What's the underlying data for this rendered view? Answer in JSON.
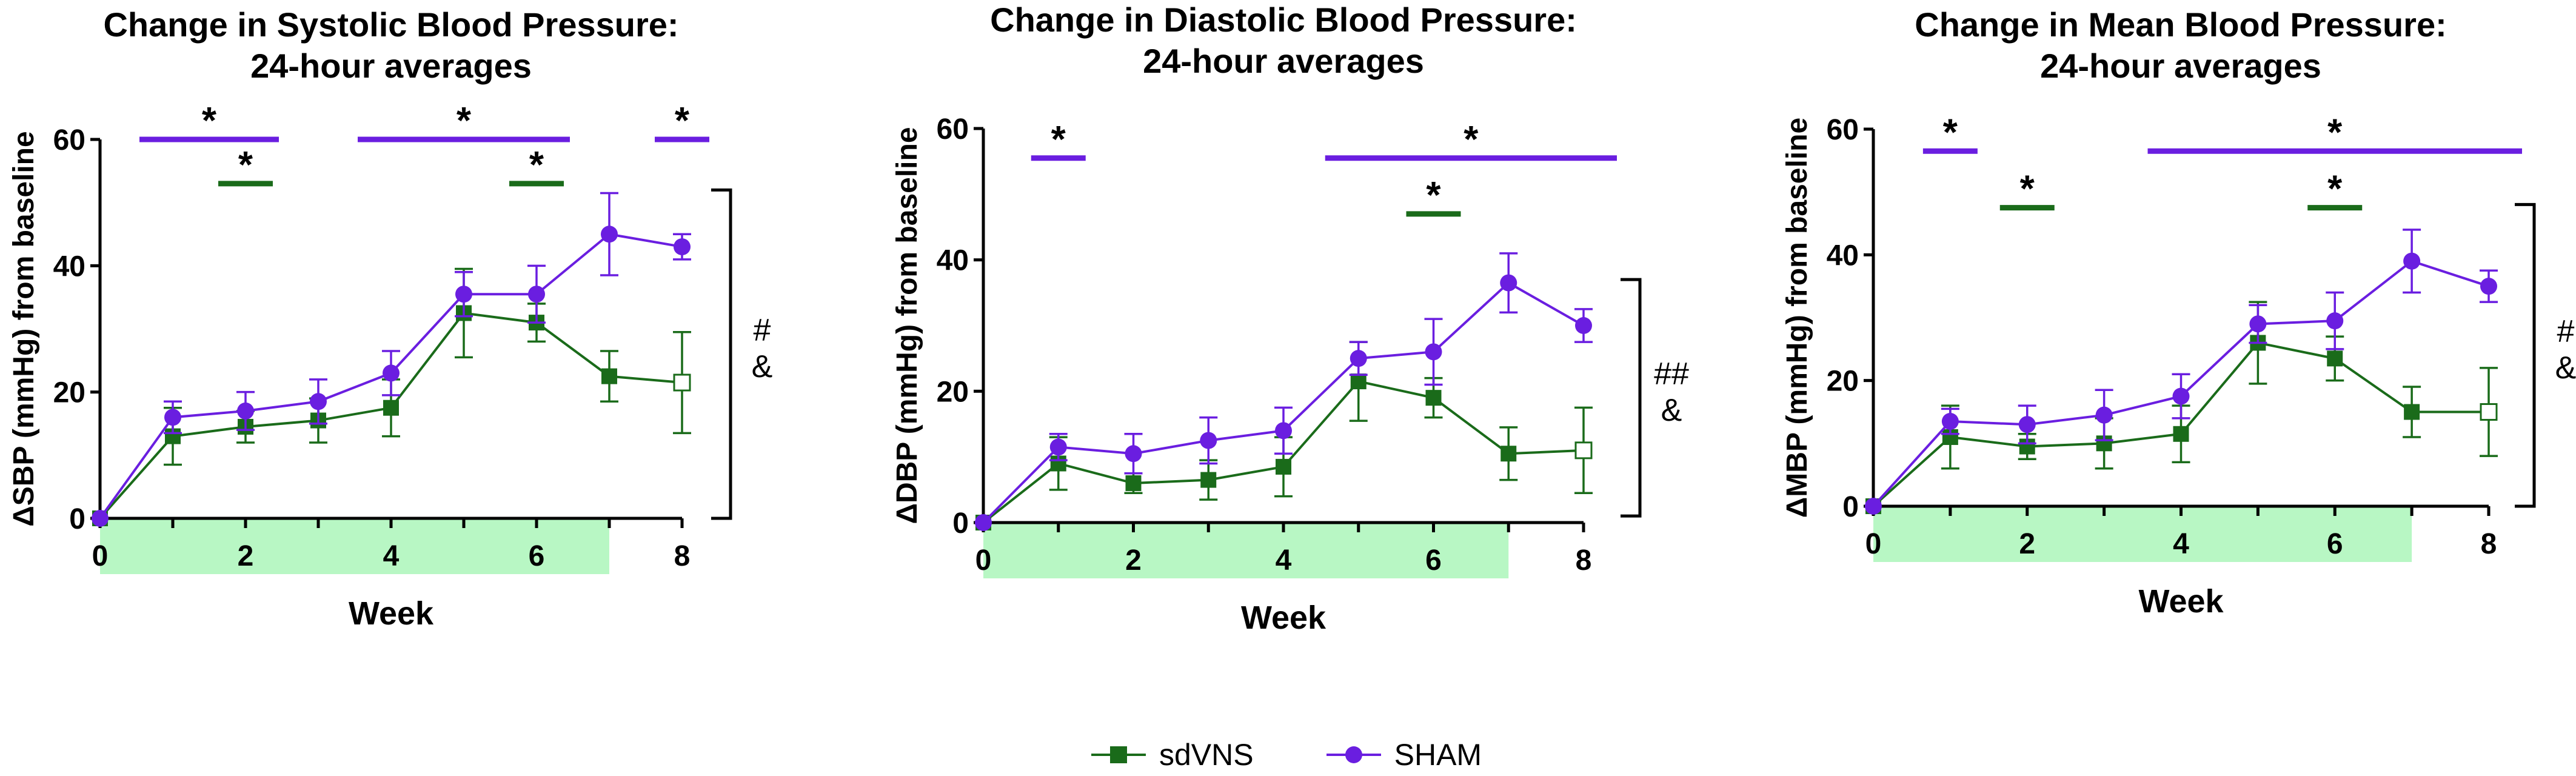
{
  "colors": {
    "sdVNS": "#1a6b1a",
    "SHAM": "#6a1ee0",
    "stim_band": "#b8f7c4"
  },
  "legend": {
    "sdvns_label": "sdVNS",
    "sham_label": "SHAM"
  },
  "chart_data": [
    {
      "type": "line",
      "title_line1": "Change in Systolic Blood Pressure:",
      "title_line2": "24-hour averages",
      "ylabel_symbol": "Δ",
      "ylabel": "SBP (mmHg) from baseline",
      "xlabel": "Week",
      "xlim": [
        0,
        8
      ],
      "ylim": [
        0,
        60
      ],
      "xticks": [
        "0",
        "2",
        "4",
        "6",
        "8"
      ],
      "yticks": [
        "0",
        "20",
        "40",
        "60"
      ],
      "stim_weeks": [
        0,
        7
      ],
      "x": [
        0,
        1,
        2,
        3,
        4,
        5,
        6,
        7,
        8
      ],
      "series": [
        {
          "name": "sdVNS",
          "values": [
            0,
            13,
            14.5,
            15.5,
            17.5,
            32.5,
            31,
            22.5,
            21.5
          ],
          "err": [
            0,
            4.5,
            2.5,
            3.5,
            4.5,
            7,
            3,
            4,
            8
          ],
          "open_last": true
        },
        {
          "name": "SHAM",
          "values": [
            0,
            16,
            17,
            18.5,
            23,
            35.5,
            35.5,
            45,
            43
          ],
          "err": [
            0,
            2.5,
            3,
            3.5,
            3.5,
            3.5,
            4.5,
            6.5,
            2
          ]
        }
      ],
      "sig_bars": [
        {
          "series": "SHAM",
          "x": [
            1,
            2
          ],
          "label": "*",
          "y": 60
        },
        {
          "series": "sdVNS",
          "x": [
            2,
            2
          ],
          "label": "*",
          "y": 53
        },
        {
          "series": "SHAM",
          "x": [
            4,
            6
          ],
          "label": "*",
          "y": 60
        },
        {
          "series": "sdVNS",
          "x": [
            6,
            6
          ],
          "label": "*",
          "y": 53
        },
        {
          "series": "SHAM",
          "x": [
            8,
            8
          ],
          "label": "*",
          "y": 60
        }
      ],
      "bracket": {
        "y": [
          0,
          52
        ],
        "labels": [
          "#",
          "&"
        ]
      }
    },
    {
      "type": "line",
      "title_line1": "Change in Diastolic Blood Pressure:",
      "title_line2": "24-hour averages",
      "ylabel_symbol": "Δ",
      "ylabel": "DBP (mmHg) from baseline",
      "xlabel": "Week",
      "xlim": [
        0,
        8
      ],
      "ylim": [
        0,
        60
      ],
      "xticks": [
        "0",
        "2",
        "4",
        "6",
        "8"
      ],
      "yticks": [
        "0",
        "20",
        "40",
        "60"
      ],
      "stim_weeks": [
        0,
        7
      ],
      "x": [
        0,
        1,
        2,
        3,
        4,
        5,
        6,
        7,
        8
      ],
      "series": [
        {
          "name": "sdVNS",
          "values": [
            0,
            9,
            6,
            6.5,
            8.5,
            21.5,
            19,
            10.5,
            11
          ],
          "err": [
            0,
            4,
            1.5,
            3,
            4.5,
            6,
            3,
            4,
            6.5
          ],
          "open_last": true
        },
        {
          "name": "SHAM",
          "values": [
            0,
            11.5,
            10.5,
            12.5,
            14,
            25,
            26,
            36.5,
            30
          ],
          "err": [
            0,
            2,
            3,
            3.5,
            3.5,
            2.5,
            5,
            4.5,
            2.5
          ]
        }
      ],
      "sig_bars": [
        {
          "series": "SHAM",
          "x": [
            1,
            1
          ],
          "label": "*",
          "y": 55.5
        },
        {
          "series": "SHAM",
          "x": [
            5,
            8
          ],
          "label": "*",
          "y": 55.5
        },
        {
          "series": "sdVNS",
          "x": [
            6,
            6
          ],
          "label": "*",
          "y": 47
        }
      ],
      "bracket": {
        "y": [
          1,
          37
        ],
        "labels": [
          "##",
          "&"
        ]
      }
    },
    {
      "type": "line",
      "title_line1": "Change in Mean Blood Pressure:",
      "title_line2": "24-hour averages",
      "ylabel_symbol": "Δ",
      "ylabel": "MBP (mmHg) from baseline",
      "xlabel": "Week",
      "xlim": [
        0,
        8
      ],
      "ylim": [
        0,
        60
      ],
      "xticks": [
        "0",
        "2",
        "4",
        "6",
        "8"
      ],
      "yticks": [
        "0",
        "20",
        "40",
        "60"
      ],
      "stim_weeks": [
        0,
        7
      ],
      "x": [
        0,
        1,
        2,
        3,
        4,
        5,
        6,
        7,
        8
      ],
      "series": [
        {
          "name": "sdVNS",
          "values": [
            0,
            11,
            9.5,
            10,
            11.5,
            26,
            23.5,
            15,
            15
          ],
          "err": [
            0,
            5,
            2,
            4,
            4.5,
            6.5,
            3.5,
            4,
            7
          ],
          "open_last": true
        },
        {
          "name": "SHAM",
          "values": [
            0,
            13.5,
            13,
            14.5,
            17.5,
            29,
            29.5,
            39,
            35
          ],
          "err": [
            0,
            2,
            3,
            4,
            3.5,
            3,
            4.5,
            5,
            2.5
          ]
        }
      ],
      "sig_bars": [
        {
          "series": "SHAM",
          "x": [
            1,
            1
          ],
          "label": "*",
          "y": 56.5
        },
        {
          "series": "sdVNS",
          "x": [
            2,
            2
          ],
          "label": "*",
          "y": 47.5
        },
        {
          "series": "SHAM",
          "x": [
            4,
            8
          ],
          "label": "*",
          "y": 56.5
        },
        {
          "series": "sdVNS",
          "x": [
            6,
            6
          ],
          "label": "*",
          "y": 47.5
        }
      ],
      "bracket": {
        "y": [
          0,
          48
        ],
        "labels": [
          "#",
          "&"
        ]
      }
    }
  ]
}
